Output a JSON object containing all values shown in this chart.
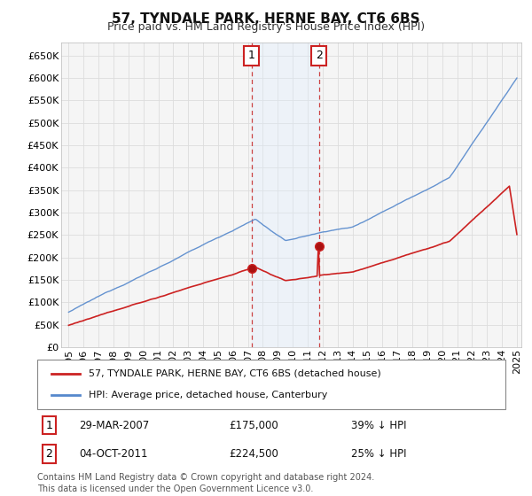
{
  "title": "57, TYNDALE PARK, HERNE BAY, CT6 6BS",
  "subtitle": "Price paid vs. HM Land Registry's House Price Index (HPI)",
  "ylim": [
    0,
    680000
  ],
  "yticks": [
    0,
    50000,
    100000,
    150000,
    200000,
    250000,
    300000,
    350000,
    400000,
    450000,
    500000,
    550000,
    600000,
    650000
  ],
  "xlim_start": 1994.5,
  "xlim_end": 2025.3,
  "background_color": "#ffffff",
  "plot_bg_color": "#f5f5f5",
  "grid_color": "#dddddd",
  "sale1_date": 2007.24,
  "sale1_price": 175000,
  "sale2_date": 2011.75,
  "sale2_price": 224500,
  "hpi_line_color": "#5588cc",
  "price_line_color": "#cc2222",
  "shade_color": "#ddeeff",
  "dashed_line_color": "#cc4444",
  "legend_label1": "57, TYNDALE PARK, HERNE BAY, CT6 6BS (detached house)",
  "legend_label2": "HPI: Average price, detached house, Canterbury",
  "footer": "Contains HM Land Registry data © Crown copyright and database right 2024.\nThis data is licensed under the Open Government Licence v3.0.",
  "title_fontsize": 11,
  "subtitle_fontsize": 9,
  "tick_fontsize": 8,
  "legend_fontsize": 8,
  "annotation_fontsize": 8.5,
  "footer_fontsize": 7
}
